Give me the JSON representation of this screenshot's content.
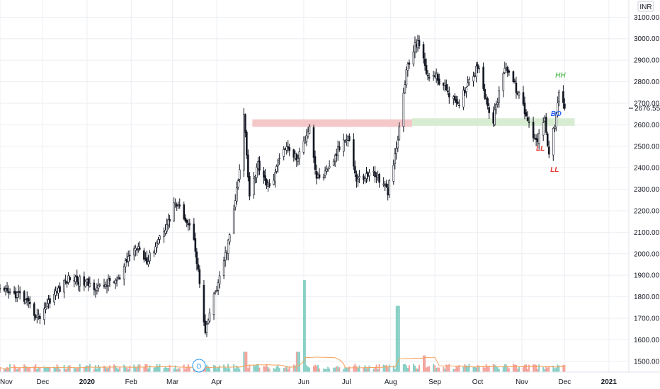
{
  "currency": "INR",
  "last_price_label": "2676.55",
  "dividend_marker": "D",
  "chart_data": {
    "type": "candlestick",
    "ylim": [
      1450,
      3180
    ],
    "yticks": [
      1500,
      1600,
      1700,
      1800,
      1900,
      2000,
      2100,
      2200,
      2300,
      2400,
      2500,
      2600,
      2700,
      2800,
      2900,
      3000,
      3100
    ],
    "ytick_labels": [
      "1500.00",
      "1600.00",
      "1700.00",
      "1800.00",
      "1900.00",
      "2000.00",
      "2100.00",
      "2200.00",
      "2300.00",
      "2400.00",
      "2500.00",
      "2600.00",
      "2700.00",
      "2800.00",
      "2900.00",
      "3000.00",
      "3100.00"
    ],
    "x_months": [
      "Nov",
      "Dec",
      "2020",
      "Feb",
      "Mar",
      "Apr",
      "Jun",
      "Jul",
      "Aug",
      "Sep",
      "Oct",
      "Nov",
      "Dec",
      "2021"
    ],
    "x_start": "2019-11-01",
    "x_end": "2021-01-15",
    "current_price": 2676.55,
    "price_path": [
      [
        "2019-11-01",
        1820
      ],
      [
        "2019-11-15",
        1810
      ],
      [
        "2019-11-28",
        1700
      ],
      [
        "2019-12-05",
        1780
      ],
      [
        "2019-12-20",
        1890
      ],
      [
        "2020-01-02",
        1860
      ],
      [
        "2020-01-10",
        1840
      ],
      [
        "2020-01-17",
        1870
      ],
      [
        "2020-01-24",
        1880
      ],
      [
        "2020-01-31",
        2000
      ],
      [
        "2020-02-07",
        2040
      ],
      [
        "2020-02-12",
        1960
      ],
      [
        "2020-02-21",
        2080
      ],
      [
        "2020-02-28",
        2160
      ],
      [
        "2020-03-02",
        2240
      ],
      [
        "2020-03-09",
        2180
      ],
      [
        "2020-03-16",
        2080
      ],
      [
        "2020-03-20",
        1860
      ],
      [
        "2020-03-24",
        1620
      ],
      [
        "2020-03-28",
        1760
      ],
      [
        "2020-04-03",
        1880
      ],
      [
        "2020-04-10",
        2080
      ],
      [
        "2020-04-17",
        2380
      ],
      [
        "2020-04-20",
        2650
      ],
      [
        "2020-04-24",
        2280
      ],
      [
        "2020-04-30",
        2420
      ],
      [
        "2020-05-08",
        2300
      ],
      [
        "2020-05-18",
        2500
      ],
      [
        "2020-05-28",
        2440
      ],
      [
        "2020-06-05",
        2600
      ],
      [
        "2020-06-10",
        2350
      ],
      [
        "2020-06-18",
        2380
      ],
      [
        "2020-06-25",
        2480
      ],
      [
        "2020-07-02",
        2560
      ],
      [
        "2020-07-08",
        2340
      ],
      [
        "2020-07-20",
        2380
      ],
      [
        "2020-07-30",
        2290
      ],
      [
        "2020-08-05",
        2480
      ],
      [
        "2020-08-12",
        2850
      ],
      [
        "2020-08-20",
        3000
      ],
      [
        "2020-08-26",
        2840
      ],
      [
        "2020-09-02",
        2820
      ],
      [
        "2020-09-10",
        2760
      ],
      [
        "2020-09-17",
        2680
      ],
      [
        "2020-09-24",
        2800
      ],
      [
        "2020-10-02",
        2880
      ],
      [
        "2020-10-07",
        2700
      ],
      [
        "2020-10-12",
        2620
      ],
      [
        "2020-10-20",
        2880
      ],
      [
        "2020-10-26",
        2800
      ],
      [
        "2020-11-01",
        2700
      ],
      [
        "2020-11-08",
        2560
      ],
      [
        "2020-11-12",
        2530
      ],
      [
        "2020-11-17",
        2640
      ],
      [
        "2020-11-20",
        2460
      ],
      [
        "2020-11-24",
        2600
      ],
      [
        "2020-11-27",
        2740
      ],
      [
        "2020-12-01",
        2676
      ]
    ],
    "zones": [
      {
        "from": "2020-04-26",
        "to": "2020-08-16",
        "y0": 2590,
        "y1": 2625,
        "color": "#f4c7c9"
      },
      {
        "from": "2020-08-16",
        "to": "2020-12-08",
        "y0": 2595,
        "y1": 2630,
        "color": "#d8ecd2"
      }
    ],
    "annotations": [
      {
        "text": "HH",
        "date": "2020-11-28",
        "price": 2820,
        "color": "#6cc36c"
      },
      {
        "text": "BO",
        "date": "2020-11-25",
        "price": 2640,
        "color": "#2962ff"
      },
      {
        "text": "LL",
        "date": "2020-11-14",
        "price": 2480,
        "color": "#e53935"
      },
      {
        "text": "LL",
        "date": "2020-11-24",
        "price": 2380,
        "color": "#e53935"
      }
    ],
    "volume_spikes": [
      {
        "date": "2020-06-01",
        "ratio": 1.0
      },
      {
        "date": "2020-08-06",
        "ratio": 0.72
      },
      {
        "date": "2020-04-21",
        "ratio": 0.22
      },
      {
        "date": "2020-05-28",
        "ratio": 0.22
      },
      {
        "date": "2020-08-24",
        "ratio": 0.18
      }
    ],
    "colors": {
      "up": "#131722",
      "down": "#131722",
      "vol_up": "#86cfc5",
      "vol_down": "#f4a39c",
      "vol_ma": "#f5a35c",
      "grid": "#eceef2",
      "axis_text": "#131722"
    }
  }
}
